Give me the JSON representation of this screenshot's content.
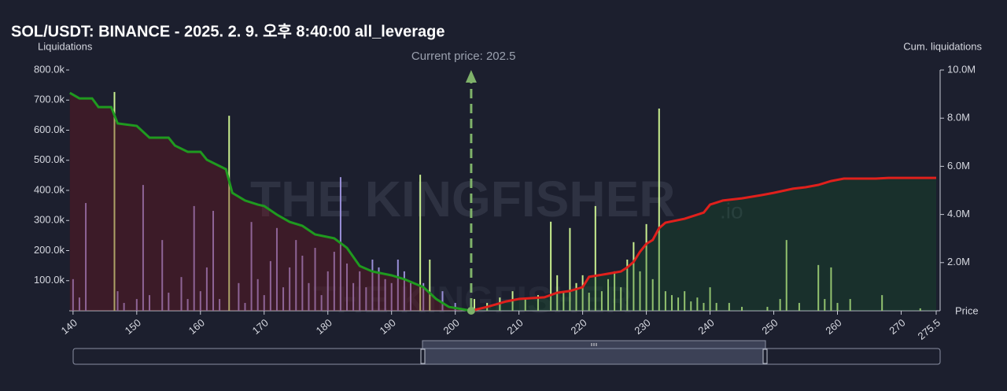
{
  "chart_data": {
    "type": "combo",
    "title": "SOL/USDT: BINANCE - 2025. 2. 9. 오후 8:40:00 all_leverage",
    "y_label": "Liquidations",
    "y2_label": "Cum. liquidations",
    "x_label": "Price",
    "annotation": "Current price: 202.5",
    "current_price": 202.5,
    "watermark": "THE KINGFISHER",
    "watermark_suffix": ".io",
    "xlim": [
      139.4,
      275.5
    ],
    "xticks": [
      140,
      150,
      160,
      170,
      180,
      190,
      200,
      210,
      220,
      230,
      240,
      250,
      260,
      270,
      275.5
    ],
    "ylim": [
      0,
      800000
    ],
    "yticks": [
      {
        "value": 100000,
        "label": "100.0k"
      },
      {
        "value": 200000,
        "label": "200.0k"
      },
      {
        "value": 300000,
        "label": "300.0k"
      },
      {
        "value": 400000,
        "label": "400.0k"
      },
      {
        "value": 500000,
        "label": "500.0k"
      },
      {
        "value": 600000,
        "label": "600.0k"
      },
      {
        "value": 700000,
        "label": "700.0k"
      },
      {
        "value": 800000,
        "label": "800.0k"
      }
    ],
    "y2lim": [
      0,
      10000000
    ],
    "y2ticks": [
      {
        "value": 2000000,
        "label": "2.0M"
      },
      {
        "value": 4000000,
        "label": "4.0M"
      },
      {
        "value": 6000000,
        "label": "6.0M"
      },
      {
        "value": 8000000,
        "label": "8.0M"
      },
      {
        "value": 10000000,
        "label": "10.0M"
      }
    ],
    "series": [
      {
        "type": "bar",
        "color": "#9a8fd8",
        "x": [
          140,
          141,
          142,
          147,
          148,
          150,
          151,
          152,
          154,
          155,
          157,
          158,
          159,
          160,
          161,
          162,
          163,
          166,
          167,
          168,
          169,
          170,
          171,
          172,
          173,
          174,
          175,
          176,
          177,
          178,
          179,
          180,
          181,
          182,
          183,
          184,
          185,
          186,
          187,
          188,
          189,
          190,
          191,
          192,
          193,
          195,
          198,
          200
        ],
        "values": [
          105000,
          44000,
          358000,
          65000,
          26000,
          39000,
          418000,
          52000,
          235000,
          60000,
          112000,
          39000,
          348000,
          65000,
          144000,
          332000,
          39000,
          92000,
          26000,
          295000,
          105000,
          52000,
          165000,
          275000,
          78000,
          144000,
          235000,
          183000,
          92000,
          209000,
          52000,
          131000,
          196000,
          444000,
          157000,
          92000,
          131000,
          78000,
          170000,
          144000,
          105000,
          92000,
          170000,
          131000,
          92000,
          92000,
          65000,
          26000
        ]
      },
      {
        "type": "bar",
        "color": "#c9ef8f",
        "x": [
          146.5,
          164.5,
          194.5,
          196,
          203,
          205,
          207,
          209,
          211,
          213,
          215,
          216,
          217,
          218,
          219,
          220,
          221,
          222,
          223,
          224,
          225,
          226,
          227,
          228,
          229,
          230,
          231,
          232,
          233,
          234,
          235,
          236,
          237,
          238,
          239,
          240,
          241,
          243,
          245,
          249,
          251,
          252,
          254,
          257,
          258,
          259,
          260,
          262,
          267,
          273
        ],
        "values": [
          727000,
          648000,
          452000,
          170000,
          39000,
          26000,
          44000,
          65000,
          39000,
          52000,
          296000,
          118000,
          65000,
          275000,
          92000,
          118000,
          60000,
          348000,
          65000,
          105000,
          131000,
          78000,
          170000,
          228000,
          131000,
          288000,
          105000,
          672000,
          65000,
          52000,
          44000,
          65000,
          31000,
          44000,
          26000,
          78000,
          26000,
          26000,
          13000,
          13000,
          39000,
          235000,
          26000,
          152000,
          39000,
          144000,
          26000,
          39000,
          52000,
          8000
        ]
      },
      {
        "type": "line",
        "axis": "y2",
        "color": "#1f9a1f",
        "fill": "rgba(120,20,30,0.35)",
        "x": [
          139.5,
          141,
          143,
          144,
          146,
          147,
          150,
          152,
          155,
          156,
          158,
          160,
          161,
          164,
          165,
          167,
          169,
          170,
          172,
          174,
          176,
          178,
          181,
          183,
          185,
          187,
          190,
          192,
          195,
          197,
          199,
          202.5
        ],
        "values": [
          9050000,
          8820000,
          8820000,
          8460000,
          8460000,
          7780000,
          7680000,
          7190000,
          7190000,
          6860000,
          6600000,
          6600000,
          6270000,
          5880000,
          4900000,
          4580000,
          4410000,
          4350000,
          3990000,
          3690000,
          3530000,
          3170000,
          3010000,
          2610000,
          1860000,
          1630000,
          1470000,
          1310000,
          980000,
          490000,
          160000,
          0
        ]
      },
      {
        "type": "line",
        "axis": "y2",
        "color": "#e0201c",
        "fill": "rgba(20,90,40,0.3)",
        "x": [
          202.5,
          205,
          208,
          210,
          214,
          216,
          218,
          220,
          221,
          224,
          226,
          227,
          228,
          229,
          230,
          231,
          232,
          233,
          236,
          239,
          240,
          242,
          245,
          248,
          250,
          253,
          255,
          257,
          259,
          261,
          266,
          268,
          275.5
        ],
        "values": [
          0,
          160000,
          390000,
          490000,
          560000,
          750000,
          820000,
          980000,
          1410000,
          1540000,
          1630000,
          1800000,
          2030000,
          2450000,
          2780000,
          2940000,
          3430000,
          3660000,
          3820000,
          4080000,
          4410000,
          4580000,
          4670000,
          4800000,
          4900000,
          5070000,
          5130000,
          5230000,
          5390000,
          5490000,
          5490000,
          5520000,
          5520000
        ]
      }
    ]
  }
}
